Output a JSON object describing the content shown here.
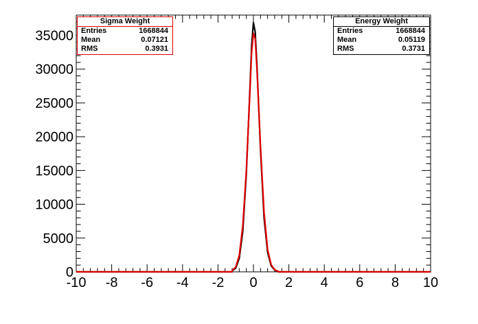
{
  "chart_data": {
    "type": "line",
    "title": "",
    "xlabel": "",
    "ylabel": "",
    "xlim": [
      -10,
      10
    ],
    "ylim": [
      0,
      38000
    ],
    "x_ticks": [
      "-10",
      "-8",
      "-6",
      "-4",
      "-2",
      "0",
      "2",
      "4",
      "6",
      "8",
      "10"
    ],
    "y_ticks": [
      "0",
      "5000",
      "10000",
      "15000",
      "20000",
      "25000",
      "30000",
      "35000"
    ],
    "grid": false,
    "series": [
      {
        "name": "Energy Weight",
        "color": "#000000",
        "peak": 36900,
        "x": [
          -1.2,
          -1.0,
          -0.8,
          -0.6,
          -0.4,
          -0.2,
          -0.1,
          0.0,
          0.1,
          0.2,
          0.4,
          0.6,
          0.8,
          1.0,
          1.2,
          1.4
        ],
        "values": [
          150,
          550,
          2000,
          6000,
          14500,
          27000,
          33500,
          36900,
          35500,
          30500,
          18000,
          8000,
          2900,
          900,
          250,
          60
        ]
      },
      {
        "name": "Sigma Weight",
        "color": "#e00000",
        "peak": 35500,
        "x": [
          -1.2,
          -1.0,
          -0.8,
          -0.6,
          -0.4,
          -0.2,
          -0.1,
          0.0,
          0.1,
          0.2,
          0.4,
          0.6,
          0.8,
          1.0,
          1.2,
          1.4
        ],
        "values": [
          200,
          700,
          2400,
          6800,
          15000,
          26500,
          32500,
          35300,
          34500,
          30000,
          18500,
          8800,
          3300,
          1050,
          300,
          80
        ]
      }
    ]
  },
  "stat_boxes": {
    "sigma": {
      "title": "Sigma Weight",
      "rows": [
        {
          "label": "Entries",
          "value": "1668844"
        },
        {
          "label": "Mean",
          "value": "0.07121"
        },
        {
          "label": "RMS",
          "value": "0.3931"
        }
      ]
    },
    "energy": {
      "title": "Energy Weight",
      "rows": [
        {
          "label": "Entries",
          "value": "1668844"
        },
        {
          "label": "Mean",
          "value": "0.05119"
        },
        {
          "label": "RMS",
          "value": "0.3731"
        }
      ]
    }
  }
}
